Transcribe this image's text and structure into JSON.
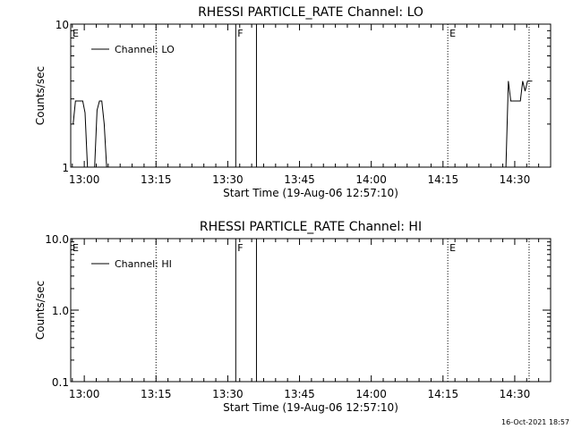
{
  "footer": {
    "timestamp": "16-Oct-2021 18:57"
  },
  "chart_data": [
    {
      "type": "line",
      "title": "RHESSI PARTICLE_RATE Channel: LO",
      "xlabel": "Start Time (19-Aug-06 12:57:10)",
      "ylabel": "Counts/sec",
      "yscale": "log",
      "ylim": [
        1,
        10
      ],
      "ytick_values": [
        1,
        10
      ],
      "ytick_labels": [
        "1",
        "10"
      ],
      "xlim": [
        "12:57:10",
        "14:37:30"
      ],
      "xtick_labels": [
        "13:00",
        "13:15",
        "13:30",
        "13:45",
        "14:00",
        "14:15",
        "14:30"
      ],
      "legend": {
        "placement": "top-left",
        "entries": [
          "Channel: LO"
        ]
      },
      "events": [
        {
          "label": "E",
          "time": "12:57:10",
          "style": "dotted"
        },
        {
          "label": "F",
          "time": "13:31:40",
          "style": "solid"
        },
        {
          "label": "",
          "time": "13:36:00",
          "style": "solid"
        },
        {
          "label": "E",
          "time": "14:16:00",
          "style": "dotted"
        },
        {
          "label": "",
          "time": "13:15:00",
          "style": "dotted"
        },
        {
          "label": "",
          "time": "14:33:00",
          "style": "dotted"
        }
      ],
      "series": [
        {
          "name": "Channel: LO",
          "points": [
            [
              "12:57:40",
              2.0
            ],
            [
              "12:58:10",
              2.9
            ],
            [
              "12:59:40",
              2.9
            ],
            [
              "13:00:10",
              2.4
            ],
            [
              "13:00:40",
              1.0
            ],
            [
              "13:02:10",
              1.0
            ],
            [
              "13:02:40",
              2.5
            ],
            [
              "13:03:10",
              2.9
            ],
            [
              "13:03:40",
              2.9
            ],
            [
              "13:04:10",
              2.0
            ],
            [
              "13:04:40",
              1.0
            ],
            [
              "14:28:10",
              1.0
            ],
            [
              "14:28:40",
              4.0
            ],
            [
              "14:29:10",
              2.9
            ],
            [
              "14:31:10",
              2.9
            ],
            [
              "14:31:40",
              4.0
            ],
            [
              "14:32:10",
              3.4
            ],
            [
              "14:32:40",
              4.0
            ],
            [
              "14:33:40",
              4.0
            ]
          ]
        }
      ]
    },
    {
      "type": "line",
      "title": "RHESSI PARTICLE_RATE Channel: HI",
      "xlabel": "Start Time (19-Aug-06 12:57:10)",
      "ylabel": "Counts/sec",
      "yscale": "log",
      "ylim": [
        0.1,
        10
      ],
      "ytick_values": [
        0.1,
        1,
        10
      ],
      "ytick_labels": [
        "0.1",
        "1.0",
        "10.0"
      ],
      "xlim": [
        "12:57:10",
        "14:37:30"
      ],
      "xtick_labels": [
        "13:00",
        "13:15",
        "13:30",
        "13:45",
        "14:00",
        "14:15",
        "14:30"
      ],
      "legend": {
        "placement": "top-left",
        "entries": [
          "Channel: HI"
        ]
      },
      "events": [
        {
          "label": "E",
          "time": "12:57:10",
          "style": "dotted"
        },
        {
          "label": "F",
          "time": "13:31:40",
          "style": "solid"
        },
        {
          "label": "",
          "time": "13:36:00",
          "style": "solid"
        },
        {
          "label": "E",
          "time": "14:16:00",
          "style": "dotted"
        },
        {
          "label": "",
          "time": "13:15:00",
          "style": "dotted"
        },
        {
          "label": "",
          "time": "14:33:00",
          "style": "dotted"
        }
      ],
      "series": [
        {
          "name": "Channel: HI",
          "points": []
        }
      ]
    }
  ]
}
